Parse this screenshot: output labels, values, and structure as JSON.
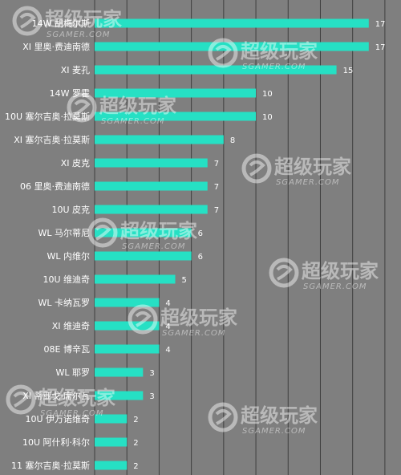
{
  "chart_data": {
    "type": "bar",
    "orientation": "horizontal",
    "title": "",
    "xlabel": "",
    "ylabel": "",
    "xlim": [
      0,
      19
    ],
    "grid": true,
    "categories": [
      "14W 胡梅尔斯",
      "XI 里奥·费迪南德",
      "XI 麦孔",
      "14W 罗霍",
      "10U 塞尔吉奥·拉莫斯",
      "XI 塞尔吉奥·拉莫斯",
      "XI 皮克",
      "06 里奥·费迪南德",
      "10U 皮克",
      "WL 马尔蒂尼",
      "WL 内维尔",
      "10U 维迪奇",
      "WL 卡纳瓦罗",
      "XI 维迪奇",
      "08E 博辛瓦",
      "WL 耶罗",
      "XI 蒂亚戈·席尔瓦",
      "10U 伊万诺维奇",
      "10U 阿什利·科尔",
      "11 塞尔吉奥·拉莫斯"
    ],
    "values": [
      17,
      17,
      15,
      10,
      10,
      8,
      7,
      7,
      7,
      6,
      6,
      5,
      4,
      4,
      4,
      3,
      3,
      2,
      2,
      2
    ],
    "bar_color": "#26e0c4",
    "background_color": "#7f7f7f"
  },
  "watermark": {
    "text": "超级玩家",
    "subtext": "SGAMER.COM"
  }
}
